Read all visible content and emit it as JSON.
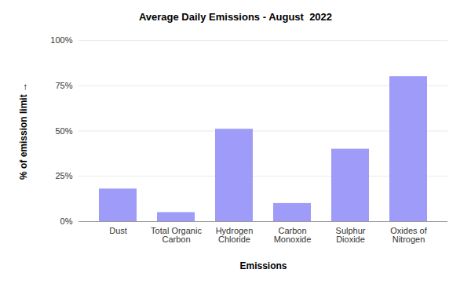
{
  "chart_data": {
    "type": "bar",
    "title": "Average Daily Emissions - August  2022",
    "xlabel": "Emissions",
    "ylabel": "% of emission limit",
    "categories": [
      "Dust",
      "Total Organic Carbon",
      "Hydrogen Chloride",
      "Carbon Monoxide",
      "Sulphur Dioxide",
      "Oxides of Nitrogen"
    ],
    "values": [
      18,
      5,
      51,
      10,
      40,
      80
    ],
    "color": "#9e9bf9",
    "ylim": [
      0,
      100
    ],
    "yticks": [
      {
        "value": 0,
        "label": "0%"
      },
      {
        "value": 25,
        "label": "25%"
      },
      {
        "value": 50,
        "label": "50%"
      },
      {
        "value": 75,
        "label": "75%"
      },
      {
        "value": 100,
        "label": "100%"
      }
    ],
    "grid": true
  }
}
